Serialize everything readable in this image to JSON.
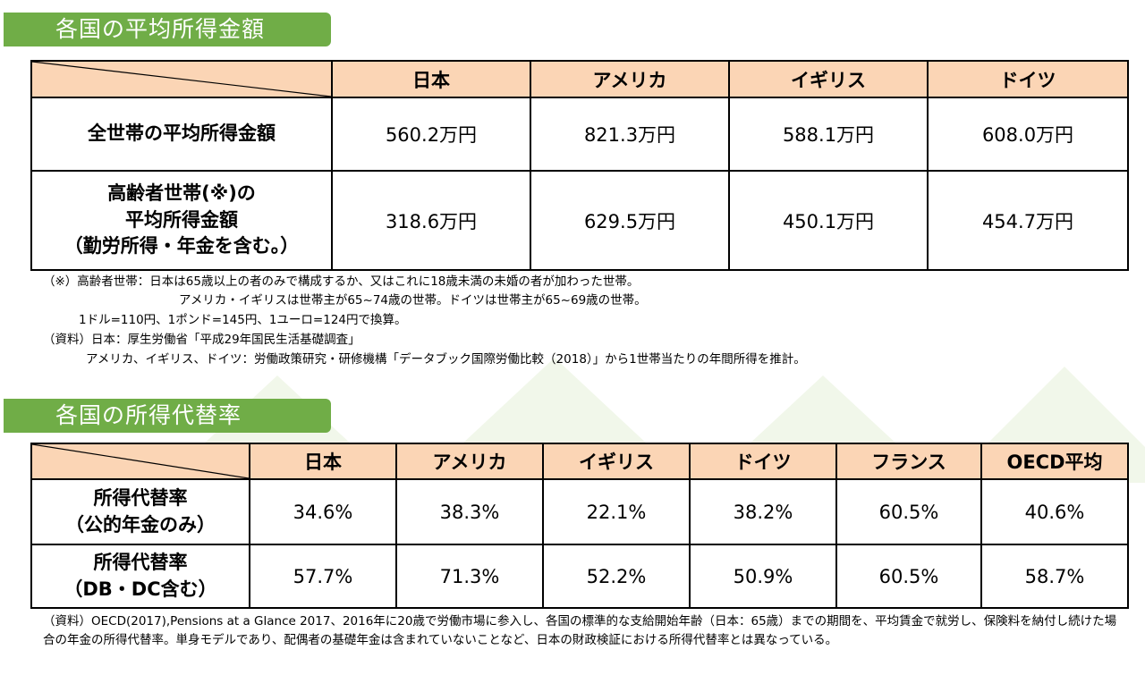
{
  "section1": {
    "title": "各国の平均所得金額",
    "header": [
      "日本",
      "アメリカ",
      "イギリス",
      "ドイツ"
    ],
    "rows": [
      {
        "label_lines": [
          "全世帯の平均所得金額"
        ],
        "values": [
          "560.2万円",
          "821.3万円",
          "588.1万円",
          "608.0万円"
        ]
      },
      {
        "label_lines": [
          "高齢者世帯(※)の",
          "平均所得金額",
          "（勤労所得・年金を含む。）"
        ],
        "values": [
          "318.6万円",
          "629.5万円",
          "450.1万円",
          "454.7万円"
        ]
      }
    ],
    "notes": [
      "（※）高齢者世帯：日本は65歳以上の者のみで構成するか、又はこれに18歳未満の未婚の者が加わった世帯。",
      "アメリカ・イギリスは世帯主が65~74歳の世帯。ドイツは世帯主が65~69歳の世帯。",
      "1ドル=110円、1ポンド=145円、1ユーロ=124円で換算。",
      "（資料）日本：厚生労働省「平成29年国民生活基礎調査」",
      "アメリカ、イギリス、ドイツ：労働政策研究・研修機構「データブック国際労働比較（2018）」から1世帯当たりの年間所得を推計。"
    ]
  },
  "section2": {
    "title": "各国の所得代替率",
    "header": [
      "日本",
      "アメリカ",
      "イギリス",
      "ドイツ",
      "フランス",
      "OECD平均"
    ],
    "rows": [
      {
        "label_lines": [
          "所得代替率",
          "（公的年金のみ）"
        ],
        "values": [
          "34.6%",
          "38.3%",
          "22.1%",
          "38.2%",
          "60.5%",
          "40.6%"
        ]
      },
      {
        "label_lines": [
          "所得代替率",
          "（DB・DC含む）"
        ],
        "values": [
          "57.7%",
          "71.3%",
          "52.2%",
          "50.9%",
          "60.5%",
          "58.7%"
        ]
      }
    ],
    "note": "（資料）OECD(2017),Pensions at a Glance 2017、2016年に20歳で労働市場に参入し、各国の標準的な支給開始年齢（日本：65歳）までの期間を、平均賃金で就労し、保険料を納付し続けた場合の年金の所得代替率。単身モデルであり、配偶者の基礎年金は含まれていないことなど、日本の財政検証における所得代替率とは異なっている。"
  },
  "colors": {
    "title_bar": "#70ad47",
    "header_fill": "#fbd5b5",
    "background_triangles": "#eef5e6"
  }
}
